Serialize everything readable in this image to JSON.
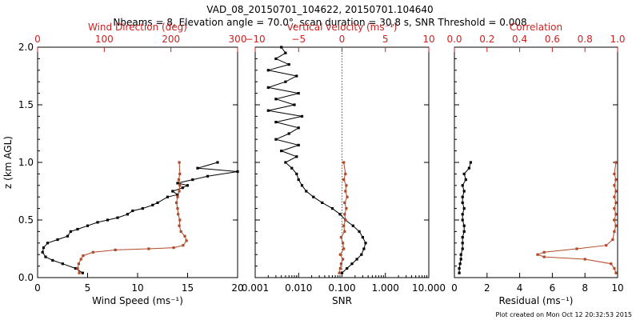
{
  "title_line1": "VAD_08_20150701_104622, 20150701.104640",
  "title_line2": "Nbeams = 8, Elevation angle = 70.0°, scan duration = 30.8 s, SNR Threshold = 0.008",
  "footer": "Plot created on Mon Oct 12 20:32:53 2015",
  "colors": {
    "black": "#000000",
    "red": "#cc2222",
    "brown": "#b04a2a",
    "background": "#ffffff"
  },
  "chart_data": [
    {
      "type": "line",
      "panel": 1,
      "ylabel": "z (km AGL)",
      "ylim": [
        0,
        2.0
      ],
      "y_ticks": [
        "0.0",
        "0.5",
        "1.0",
        "1.5",
        "2.0"
      ],
      "xlabel": "Wind Speed (ms⁻¹)",
      "xlim": [
        0,
        20
      ],
      "x_ticks": [
        "0",
        "5",
        "10",
        "15",
        "20"
      ],
      "top_xlabel": "Wind Direction (deg)",
      "top_xlim": [
        0,
        360
      ],
      "top_x_ticks": [
        "0",
        "100",
        "200",
        "300"
      ],
      "series": [
        {
          "axis": "bottom",
          "color": "#000000",
          "points": [
            [
              4.5,
              0.04
            ],
            [
              3.8,
              0.08
            ],
            [
              2.5,
              0.12
            ],
            [
              1.5,
              0.15
            ],
            [
              0.8,
              0.18
            ],
            [
              0.5,
              0.22
            ],
            [
              0.6,
              0.26
            ],
            [
              1.0,
              0.3
            ],
            [
              2.0,
              0.33
            ],
            [
              3.0,
              0.36
            ],
            [
              3.3,
              0.4
            ],
            [
              4.0,
              0.42
            ],
            [
              5.0,
              0.45
            ],
            [
              6.0,
              0.48
            ],
            [
              7.0,
              0.5
            ],
            [
              8.0,
              0.52
            ],
            [
              9.0,
              0.55
            ],
            [
              9.5,
              0.58
            ],
            [
              10.5,
              0.6
            ],
            [
              11.5,
              0.63
            ],
            [
              12.0,
              0.65
            ],
            [
              13.0,
              0.7
            ],
            [
              14.0,
              0.72
            ],
            [
              13.5,
              0.75
            ],
            [
              14.5,
              0.78
            ],
            [
              15.0,
              0.8
            ],
            [
              14.0,
              0.82
            ],
            [
              15.5,
              0.85
            ],
            [
              17.0,
              0.88
            ],
            [
              20.0,
              0.92
            ],
            [
              16.0,
              0.95
            ],
            [
              18.0,
              1.0
            ]
          ]
        },
        {
          "axis": "top",
          "color": "#b04a2a",
          "points": [
            [
              75,
              0.04
            ],
            [
              72,
              0.08
            ],
            [
              74,
              0.12
            ],
            [
              78,
              0.16
            ],
            [
              82,
              0.19
            ],
            [
              100,
              0.22
            ],
            [
              140,
              0.24
            ],
            [
              200,
              0.25
            ],
            [
              245,
              0.26
            ],
            [
              262,
              0.28
            ],
            [
              268,
              0.32
            ],
            [
              265,
              0.36
            ],
            [
              258,
              0.4
            ],
            [
              255,
              0.45
            ],
            [
              256,
              0.5
            ],
            [
              253,
              0.55
            ],
            [
              252,
              0.6
            ],
            [
              250,
              0.65
            ],
            [
              252,
              0.7
            ],
            [
              255,
              0.75
            ],
            [
              256,
              0.8
            ],
            [
              254,
              0.85
            ],
            [
              256,
              0.9
            ],
            [
              255,
              1.0
            ]
          ]
        }
      ]
    },
    {
      "type": "line",
      "panel": 2,
      "xlabel": "SNR",
      "x_scale": "log",
      "xlim": [
        0.001,
        10.0
      ],
      "x_ticks": [
        "0.001",
        "0.010",
        "0.100",
        "1.000",
        "10.000"
      ],
      "top_xlabel": "Vertical velocity (ms⁻¹)",
      "top_xlim": [
        -10,
        10
      ],
      "top_x_ticks": [
        "−10",
        "−5",
        "0",
        "5",
        "10"
      ],
      "ylim": [
        0,
        2.0
      ],
      "series": [
        {
          "axis": "bottom",
          "color": "#000000",
          "points": [
            [
              0.1,
              0.04
            ],
            [
              0.13,
              0.08
            ],
            [
              0.17,
              0.12
            ],
            [
              0.22,
              0.16
            ],
            [
              0.28,
              0.2
            ],
            [
              0.32,
              0.25
            ],
            [
              0.35,
              0.3
            ],
            [
              0.3,
              0.35
            ],
            [
              0.25,
              0.4
            ],
            [
              0.18,
              0.45
            ],
            [
              0.12,
              0.5
            ],
            [
              0.09,
              0.55
            ],
            [
              0.06,
              0.6
            ],
            [
              0.035,
              0.65
            ],
            [
              0.022,
              0.7
            ],
            [
              0.015,
              0.75
            ],
            [
              0.012,
              0.8
            ],
            [
              0.01,
              0.85
            ],
            [
              0.009,
              0.9
            ],
            [
              0.007,
              0.95
            ],
            [
              0.005,
              1.0
            ],
            [
              0.009,
              1.05
            ],
            [
              0.004,
              1.1
            ],
            [
              0.01,
              1.15
            ],
            [
              0.003,
              1.2
            ],
            [
              0.006,
              1.25
            ],
            [
              0.01,
              1.3
            ],
            [
              0.003,
              1.35
            ],
            [
              0.012,
              1.4
            ],
            [
              0.002,
              1.45
            ],
            [
              0.008,
              1.5
            ],
            [
              0.003,
              1.55
            ],
            [
              0.01,
              1.6
            ],
            [
              0.002,
              1.65
            ],
            [
              0.005,
              1.7
            ],
            [
              0.009,
              1.75
            ],
            [
              0.002,
              1.8
            ],
            [
              0.006,
              1.85
            ],
            [
              0.003,
              1.9
            ],
            [
              0.005,
              1.95
            ],
            [
              0.004,
              2.0
            ]
          ]
        },
        {
          "axis": "top",
          "color": "#b04a2a",
          "points": [
            [
              -0.3,
              0.04
            ],
            [
              -0.2,
              0.08
            ],
            [
              -0.1,
              0.12
            ],
            [
              0.1,
              0.16
            ],
            [
              -0.2,
              0.2
            ],
            [
              0.2,
              0.25
            ],
            [
              0.1,
              0.3
            ],
            [
              -0.1,
              0.35
            ],
            [
              0.3,
              0.4
            ],
            [
              0.2,
              0.45
            ],
            [
              0.4,
              0.5
            ],
            [
              0.3,
              0.55
            ],
            [
              0.5,
              0.6
            ],
            [
              0.3,
              0.65
            ],
            [
              0.6,
              0.7
            ],
            [
              0.4,
              0.75
            ],
            [
              0.5,
              0.8
            ],
            [
              0.2,
              0.85
            ],
            [
              0.4,
              0.9
            ],
            [
              0.2,
              1.0
            ]
          ]
        }
      ]
    },
    {
      "type": "line",
      "panel": 3,
      "xlabel": "Residual (ms⁻¹)",
      "xlim": [
        0,
        10
      ],
      "x_ticks": [
        "0",
        "2",
        "4",
        "6",
        "8",
        "10"
      ],
      "top_xlabel": "Correlation",
      "top_xlim": [
        0.0,
        1.0
      ],
      "top_x_ticks": [
        "0.0",
        "0.2",
        "0.4",
        "0.6",
        "0.8",
        "1.0"
      ],
      "ylim": [
        0,
        2.0
      ],
      "series": [
        {
          "axis": "bottom",
          "color": "#000000",
          "points": [
            [
              0.3,
              0.04
            ],
            [
              0.3,
              0.08
            ],
            [
              0.35,
              0.12
            ],
            [
              0.4,
              0.16
            ],
            [
              0.4,
              0.2
            ],
            [
              0.5,
              0.25
            ],
            [
              0.5,
              0.3
            ],
            [
              0.5,
              0.35
            ],
            [
              0.6,
              0.4
            ],
            [
              0.6,
              0.45
            ],
            [
              0.5,
              0.5
            ],
            [
              0.5,
              0.55
            ],
            [
              0.6,
              0.6
            ],
            [
              0.5,
              0.65
            ],
            [
              0.5,
              0.7
            ],
            [
              0.6,
              0.75
            ],
            [
              0.5,
              0.8
            ],
            [
              0.7,
              0.85
            ],
            [
              0.6,
              0.9
            ],
            [
              0.9,
              0.95
            ],
            [
              1.0,
              1.0
            ]
          ]
        },
        {
          "axis": "top",
          "color": "#b04a2a",
          "points": [
            [
              0.99,
              0.04
            ],
            [
              0.98,
              0.08
            ],
            [
              0.96,
              0.12
            ],
            [
              0.8,
              0.16
            ],
            [
              0.55,
              0.18
            ],
            [
              0.51,
              0.2
            ],
            [
              0.55,
              0.22
            ],
            [
              0.75,
              0.25
            ],
            [
              0.93,
              0.28
            ],
            [
              0.97,
              0.33
            ],
            [
              0.98,
              0.4
            ],
            [
              0.99,
              0.45
            ],
            [
              0.98,
              0.5
            ],
            [
              0.99,
              0.55
            ],
            [
              0.98,
              0.6
            ],
            [
              0.99,
              0.65
            ],
            [
              0.98,
              0.7
            ],
            [
              0.99,
              0.75
            ],
            [
              0.98,
              0.8
            ],
            [
              0.99,
              0.85
            ],
            [
              0.98,
              0.9
            ],
            [
              0.99,
              1.0
            ]
          ]
        }
      ]
    }
  ]
}
